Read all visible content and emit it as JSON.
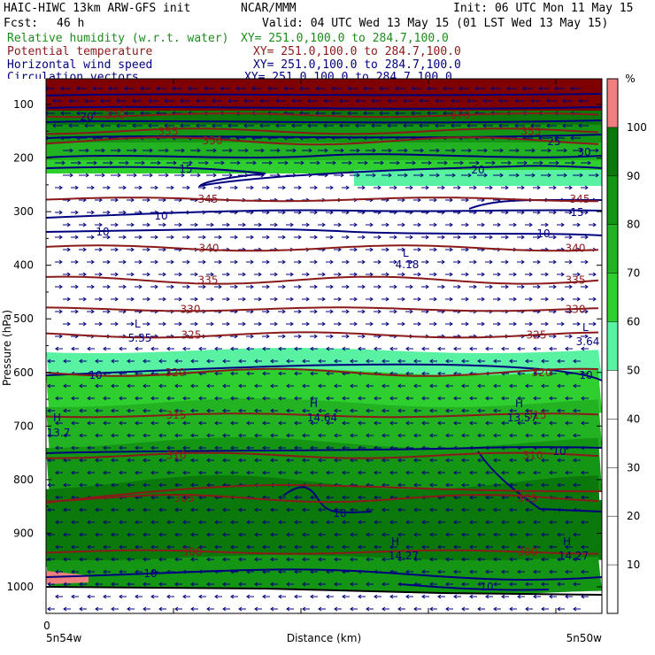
{
  "header": {
    "model_line": "HAIC-HIWC 13km ARW-GFS init",
    "org": "NCAR/MMM",
    "init": "Init: 06 UTC Mon 11 May 15",
    "fcst_label": "Fcst:",
    "fcst_value": "46 h",
    "valid": "Valid: 04 UTC Wed 13 May 15 (01 LST Wed 13 May 15)",
    "fields": [
      {
        "name": "Relative humidity (w.r.t. water)",
        "xy": "XY= 251.0,100.0 to 284.7,100.0",
        "color": "#1c8c1c"
      },
      {
        "name": "Potential temperature",
        "xy": "XY= 251.0,100.0 to 284.7,100.0",
        "color": "#8b1a1a"
      },
      {
        "name": "Horizontal wind speed",
        "xy": "XY= 251.0,100.0 to 284.7,100.0",
        "color": "#00007f"
      },
      {
        "name": "Circulation vectors",
        "xy": "XY= 251.0,100.0 to 284.7,100.0",
        "color": "#00007f"
      }
    ]
  },
  "chart_data": {
    "type": "heatmap",
    "ylabel": "Pressure (hPa)",
    "xlabel": "Distance (km)",
    "y_ticks": [
      100,
      200,
      300,
      400,
      500,
      600,
      700,
      800,
      900,
      1000
    ],
    "x_ticks": [
      "0"
    ],
    "x_left_label": "5n54w",
    "x_right_label": "5n50w",
    "colorbar": {
      "unit": "%",
      "levels": [
        10,
        20,
        30,
        40,
        50,
        60,
        70,
        80,
        90,
        100
      ],
      "colors": [
        "#ffffff",
        "#ffffff",
        "#ffffff",
        "#ffffff",
        "#ffffff",
        "#59f2a3",
        "#2fcf2f",
        "#22b222",
        "#149614",
        "#0a780a",
        "#f08080"
      ]
    },
    "theta_contours": [
      {
        "label": "370",
        "p": 120
      },
      {
        "label": "355",
        "p": 150
      },
      {
        "label": "350",
        "p": 168
      },
      {
        "label": "345",
        "p": 277
      },
      {
        "label": "340",
        "p": 368
      },
      {
        "label": "335",
        "p": 428
      },
      {
        "label": "330",
        "p": 482
      },
      {
        "label": "325",
        "p": 530
      },
      {
        "label": "320",
        "p": 600
      },
      {
        "label": "315",
        "p": 680
      },
      {
        "label": "310",
        "p": 755
      },
      {
        "label": "305",
        "p": 835
      },
      {
        "label": "300",
        "p": 935
      }
    ],
    "wind_speed_labels": [
      "20",
      "15",
      "10",
      "25",
      "30"
    ],
    "extrema": [
      {
        "kind": "L",
        "value": "4.18"
      },
      {
        "kind": "L",
        "value": "5.35"
      },
      {
        "kind": "L",
        "value": "3.64"
      },
      {
        "kind": "H",
        "value": "13.7"
      },
      {
        "kind": "H",
        "value": "14.64"
      },
      {
        "kind": "H",
        "value": "13.57"
      },
      {
        "kind": "H",
        "value": "14.27"
      },
      {
        "kind": "H",
        "value": "14.27"
      }
    ]
  }
}
